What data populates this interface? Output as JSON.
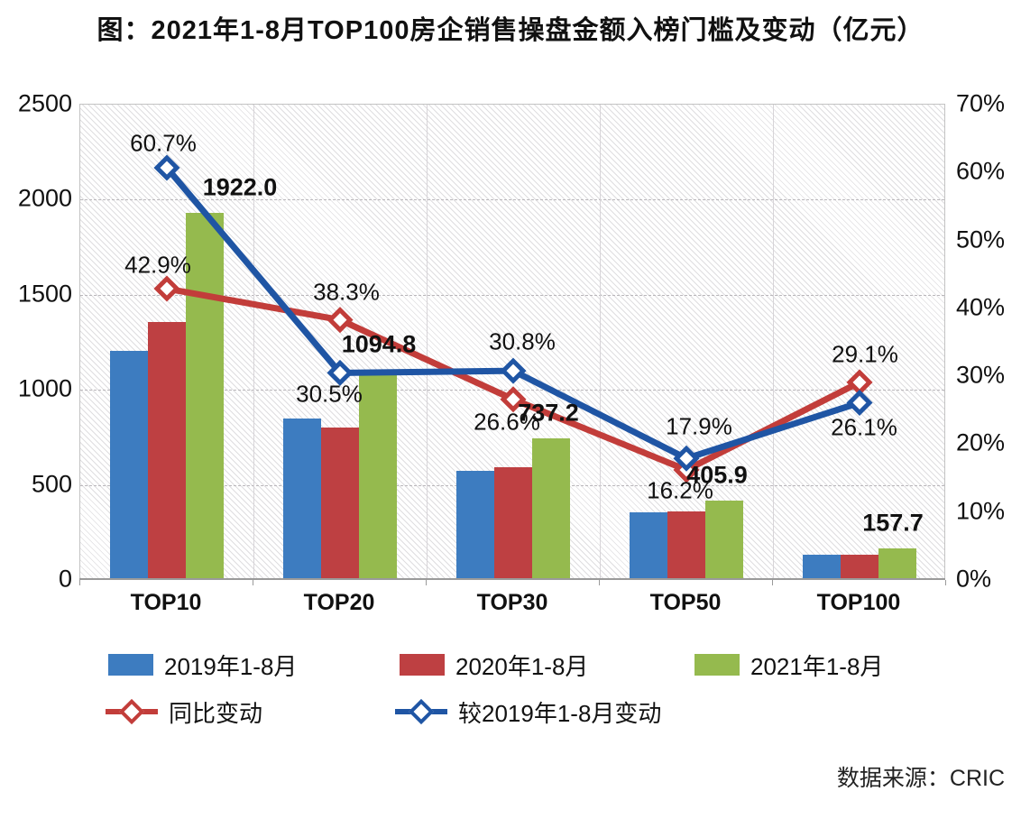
{
  "title": "图：2021年1-8月TOP100房企销售操盘金额入榜门槛及变动（亿元）",
  "source": "数据来源：CRIC",
  "chart_data": {
    "type": "bar+line combo",
    "title": "图：2021年1-8月TOP100房企销售操盘金额入榜门槛及变动（亿元）",
    "categories": [
      "TOP10",
      "TOP20",
      "TOP30",
      "TOP50",
      "TOP100"
    ],
    "bar_series": [
      {
        "name": "2019年1-8月",
        "color": "#3d7cc0",
        "values": [
          1196.0,
          838.9,
          563.6,
          344.3,
          125.1
        ]
      },
      {
        "name": "2020年1-8月",
        "color": "#be4042",
        "values": [
          1345.0,
          791.6,
          582.3,
          349.3,
          122.2
        ]
      },
      {
        "name": "2021年1-8月",
        "color": "#95ba4e",
        "values": [
          1922.0,
          1094.8,
          737.2,
          405.9,
          157.7
        ],
        "value_labels": [
          "1922.0",
          "1094.8",
          "737.2",
          "405.9",
          "157.7"
        ]
      }
    ],
    "line_series": [
      {
        "name": "同比变动",
        "color": "#c23d3a",
        "values_pct": [
          42.9,
          38.3,
          26.6,
          16.2,
          29.1
        ],
        "labels": [
          "42.9%",
          "38.3%",
          "26.6%",
          "16.2%",
          "29.1%"
        ]
      },
      {
        "name": "较2019年1-8月变动",
        "color": "#1f55a4",
        "values_pct": [
          60.7,
          30.5,
          30.8,
          17.9,
          26.1
        ],
        "labels": [
          "60.7%",
          "30.5%",
          "30.8%",
          "17.9%",
          "26.1%"
        ]
      }
    ],
    "left_axis": {
      "label": "",
      "min": 0,
      "max": 2500,
      "step": 500,
      "ticks": [
        "2500",
        "2000",
        "1500",
        "1000",
        "500",
        "0"
      ]
    },
    "right_axis": {
      "label": "",
      "min": 0,
      "max": 70,
      "step": 10,
      "ticks": [
        "70%",
        "60%",
        "50%",
        "40%",
        "30%",
        "20%",
        "10%",
        "0%"
      ]
    },
    "grid": "horizontal dashed + vertical category separators, hatched plot background",
    "legend_position": "bottom-left, two rows"
  }
}
